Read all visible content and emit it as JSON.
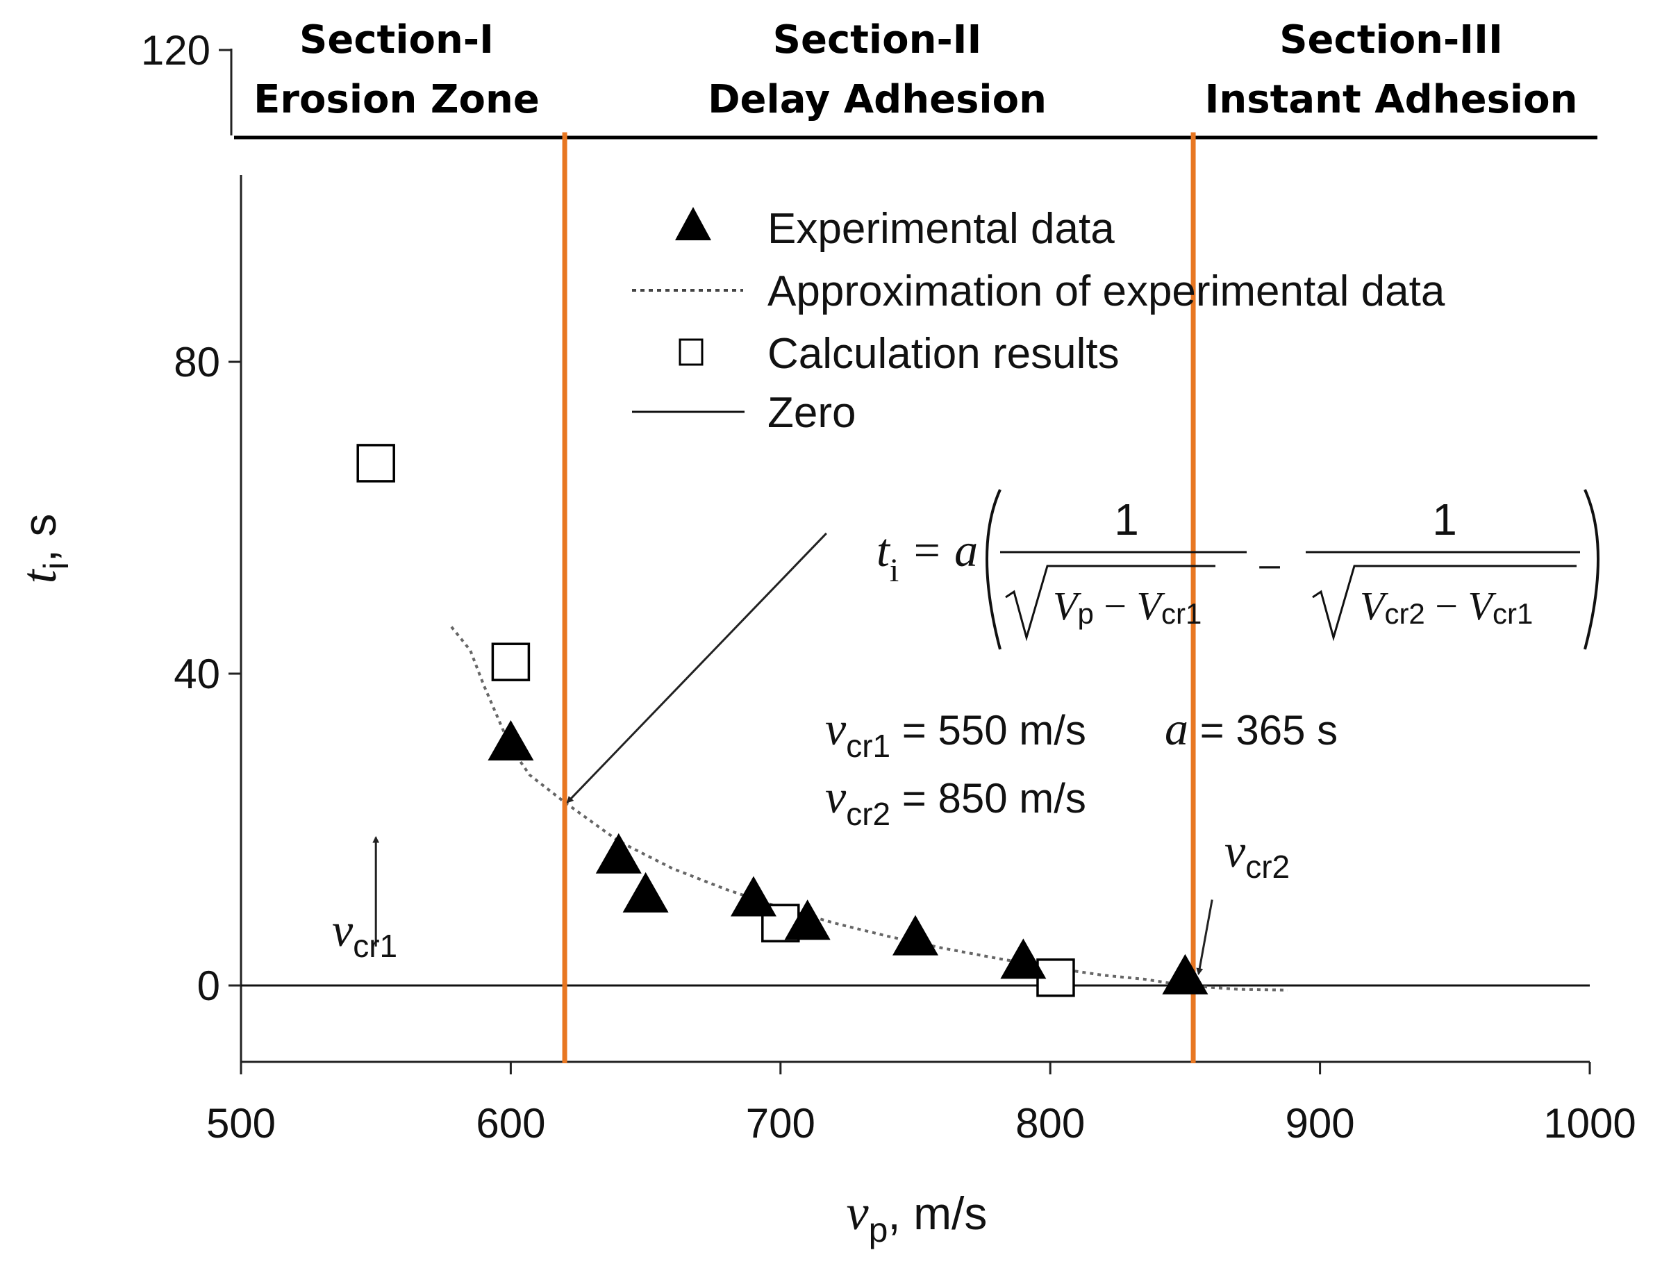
{
  "chart_data": {
    "type": "scatter",
    "xlabel": {
      "symbol": "v",
      "sub": "p",
      "unit": ", m/s"
    },
    "ylabel": {
      "symbol": "t",
      "sub": "i",
      "unit": ", s"
    },
    "xlim": [
      500,
      1000
    ],
    "ylim": [
      -10,
      120
    ],
    "x_ticks": [
      500,
      600,
      700,
      800,
      900,
      1000
    ],
    "y_ticks": [
      0,
      40,
      80,
      120
    ],
    "x_tick_labels": [
      "500",
      "600",
      "700",
      "800",
      "900",
      "1000"
    ],
    "y_tick_labels": [
      "0",
      "40",
      "80",
      "120"
    ],
    "sections": [
      {
        "title": "Section-I",
        "subtitle": "Erosion Zone",
        "from": 500,
        "to": 620
      },
      {
        "title": "Section-II",
        "subtitle": "Delay Adhesion",
        "from": 620,
        "to": 853
      },
      {
        "title": "Section-III",
        "subtitle": "Instant Adhesion",
        "from": 853,
        "to": 1000
      }
    ],
    "section_boundaries": [
      620,
      853
    ],
    "section_divider_y": 109,
    "boundary_color": "#E87722",
    "legend": [
      {
        "marker": "filled-triangle",
        "label": "Experimental data"
      },
      {
        "marker": "dotted-line",
        "label": "Approximation of experimental data"
      },
      {
        "marker": "open-square",
        "label": "Calculation results"
      },
      {
        "marker": "solid-line",
        "label": "Zero"
      }
    ],
    "series": [
      {
        "name": "Experimental data",
        "marker": "triangle",
        "points": [
          {
            "x": 600,
            "y": 31
          },
          {
            "x": 640,
            "y": 16.5
          },
          {
            "x": 650,
            "y": 11.5
          },
          {
            "x": 690,
            "y": 11
          },
          {
            "x": 710,
            "y": 8
          },
          {
            "x": 750,
            "y": 6
          },
          {
            "x": 790,
            "y": 3
          },
          {
            "x": 850,
            "y": 1
          }
        ]
      },
      {
        "name": "Calculation results",
        "marker": "square",
        "points": [
          {
            "x": 550,
            "y": 67
          },
          {
            "x": 600,
            "y": 41.5
          },
          {
            "x": 700,
            "y": 8
          },
          {
            "x": 802,
            "y": 1
          }
        ]
      },
      {
        "name": "Approximation of experimental data",
        "style": "dotted",
        "points": [
          {
            "x": 578,
            "y": 46
          },
          {
            "x": 585,
            "y": 43
          },
          {
            "x": 590,
            "y": 38.5
          },
          {
            "x": 600,
            "y": 30.5
          },
          {
            "x": 607,
            "y": 27
          },
          {
            "x": 620,
            "y": 23.5
          },
          {
            "x": 640,
            "y": 18.5
          },
          {
            "x": 660,
            "y": 15
          },
          {
            "x": 680,
            "y": 12.3
          },
          {
            "x": 700,
            "y": 10
          },
          {
            "x": 720,
            "y": 8
          },
          {
            "x": 740,
            "y": 6.3
          },
          {
            "x": 760,
            "y": 4.8
          },
          {
            "x": 780,
            "y": 3.5
          },
          {
            "x": 800,
            "y": 2.3
          },
          {
            "x": 820,
            "y": 1.3
          },
          {
            "x": 835,
            "y": 0.8
          },
          {
            "x": 850,
            "y": 0
          },
          {
            "x": 870,
            "y": -0.5
          },
          {
            "x": 888,
            "y": -0.6
          }
        ]
      },
      {
        "name": "Zero",
        "style": "solid",
        "points": [
          {
            "x": 500,
            "y": 0
          },
          {
            "x": 1000,
            "y": 0
          }
        ]
      }
    ],
    "formula": {
      "lhs": "t",
      "lhs_sub": "i",
      "eq": " = a",
      "num1": "1",
      "num2": "1",
      "den1": [
        "V",
        "p",
        " − ",
        "V",
        "cr1"
      ],
      "den2": [
        "V",
        "cr2",
        " − ",
        "V",
        "cr1"
      ],
      "minus": "−"
    },
    "params": {
      "vcr1": {
        "symbol": "v",
        "sub": "cr1",
        "text": " = 550 m/s"
      },
      "a": {
        "symbol": "a",
        "text": " = 365 s"
      },
      "vcr2": {
        "symbol": "v",
        "sub": "cr2",
        "text": " = 850 m/s"
      }
    },
    "annotations": [
      {
        "symbol": "v",
        "sub": "cr1",
        "arrow_from": [
          550,
          5
        ],
        "arrow_to": [
          550,
          19
        ]
      },
      {
        "symbol": "v",
        "sub": "cr2",
        "arrow_from": [
          860,
          11
        ],
        "arrow_to": [
          855,
          1.5
        ]
      }
    ],
    "formula_pointer": {
      "from": [
        717,
        58
      ],
      "to": [
        621,
        23.5
      ]
    }
  }
}
